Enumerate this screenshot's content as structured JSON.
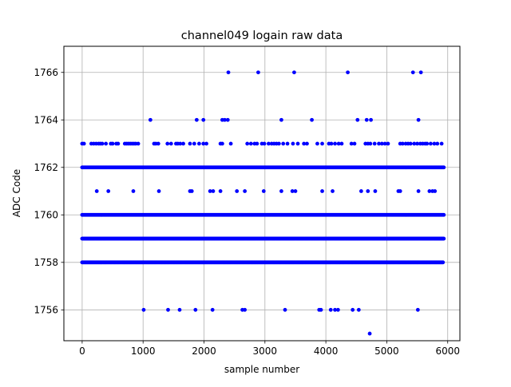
{
  "chart_data": {
    "type": "scatter",
    "title": "channel049 logain raw data",
    "xlabel": "sample number",
    "ylabel": "ADC Code",
    "xlim": [
      -300,
      6200
    ],
    "ylim": [
      1754.7,
      1767.1
    ],
    "xticks": [
      0,
      1000,
      2000,
      3000,
      4000,
      5000,
      6000
    ],
    "yticks": [
      1756,
      1758,
      1760,
      1762,
      1764,
      1766
    ],
    "grid": true,
    "marker_color": "#0000ff",
    "dense_levels": [
      {
        "y": 1758,
        "x_range": [
          0,
          5930
        ]
      },
      {
        "y": 1759,
        "x_range": [
          0,
          5940
        ]
      },
      {
        "y": 1760,
        "x_range": [
          0,
          5940
        ]
      },
      {
        "y": 1762,
        "x_range": [
          0,
          5940
        ]
      }
    ],
    "sparse_points": [
      {
        "y": 1766,
        "x": [
          2400,
          2890,
          3480,
          4360,
          5430,
          5560
        ]
      },
      {
        "y": 1764,
        "x": [
          1120,
          1880,
          1990,
          2300,
          2340,
          2390,
          3270,
          3770,
          4520,
          4670,
          4740,
          5520
        ]
      },
      {
        "y": 1763,
        "x": [
          0,
          30,
          150,
          190,
          230,
          270,
          300,
          330,
          390,
          470,
          500,
          560,
          590,
          700,
          730,
          760,
          790,
          820,
          850,
          880,
          920,
          1180,
          1210,
          1250,
          1400,
          1460,
          1540,
          1570,
          1610,
          1660,
          1770,
          1840,
          1920,
          1990,
          2040,
          2270,
          2300,
          2440,
          2710,
          2770,
          2830,
          2870,
          2950,
          2990,
          3060,
          3110,
          3150,
          3190,
          3230,
          3300,
          3370,
          3460,
          3540,
          3640,
          3690,
          3860,
          3940,
          4050,
          4090,
          4150,
          4210,
          4260,
          4420,
          4470,
          4650,
          4690,
          4730,
          4800,
          4870,
          4920,
          4970,
          5020,
          5220,
          5260,
          5310,
          5350,
          5390,
          5450,
          5500,
          5550,
          5590,
          5630,
          5660,
          5720,
          5780,
          5830,
          5900
        ]
      },
      {
        "y": 1761,
        "x": [
          240,
          430,
          840,
          1260,
          1770,
          1800,
          2100,
          2150,
          2270,
          2540,
          2670,
          2980,
          3270,
          3450,
          3500,
          3940,
          4110,
          4580,
          4690,
          4810,
          5190,
          5220,
          5520,
          5700,
          5750,
          5790
        ]
      },
      {
        "y": 1756,
        "x": [
          1010,
          1410,
          1600,
          1860,
          2140,
          2630,
          2670,
          3330,
          3890,
          3920,
          4080,
          4150,
          4200,
          4440,
          4540,
          5510
        ]
      },
      {
        "y": 1755,
        "x": [
          4720
        ]
      }
    ]
  }
}
